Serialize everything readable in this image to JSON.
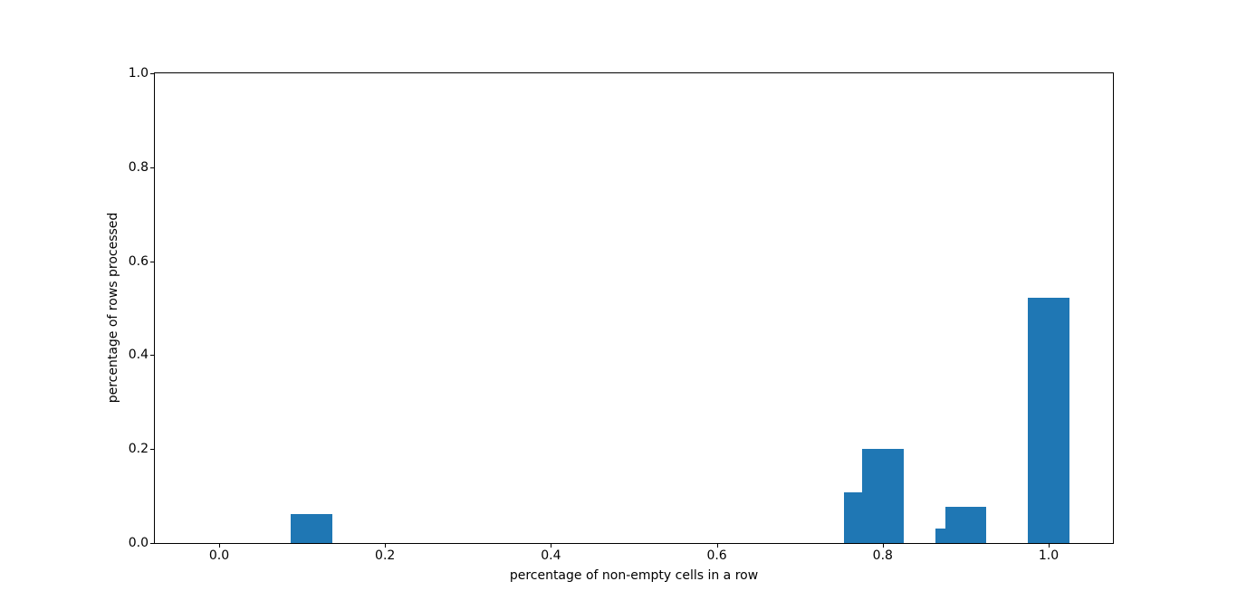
{
  "figure": {
    "background_color": "#ffffff"
  },
  "chart_data": {
    "type": "bar",
    "title": "",
    "xlabel": "percentage of non-empty cells in a row",
    "ylabel": "percentage of rows processed",
    "bar_color": "#1f77b4",
    "bar_width": 0.05,
    "x": [
      0.1111,
      0.7778,
      0.8,
      0.8889,
      0.9,
      1.0
    ],
    "values": [
      0.0615,
      0.1077,
      0.2,
      0.0308,
      0.0769,
      0.5231
    ],
    "xlim": [
      -0.0775,
      1.0775
    ],
    "ylim": [
      0.0,
      1.0
    ],
    "xtick_values": [
      0.0,
      0.2,
      0.4,
      0.6,
      0.8,
      1.0
    ],
    "xtick_labels": [
      "0.0",
      "0.2",
      "0.4",
      "0.6",
      "0.8",
      "1.0"
    ],
    "ytick_values": [
      0.0,
      0.2,
      0.4,
      0.6,
      0.8,
      1.0
    ],
    "ytick_labels": [
      "0.0",
      "0.2",
      "0.4",
      "0.6",
      "0.8",
      "1.0"
    ],
    "grid": false,
    "legend": null
  }
}
